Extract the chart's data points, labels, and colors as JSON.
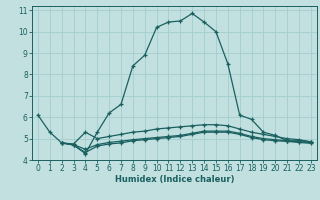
{
  "xlabel": "Humidex (Indice chaleur)",
  "bg_color": "#c2e0e0",
  "grid_color": "#a8d0d0",
  "line_color": "#1a6060",
  "xlim": [
    -0.5,
    23.5
  ],
  "ylim": [
    4,
    11.2
  ],
  "yticks": [
    4,
    5,
    6,
    7,
    8,
    9,
    10,
    11
  ],
  "xticks": [
    0,
    1,
    2,
    3,
    4,
    5,
    6,
    7,
    8,
    9,
    10,
    11,
    12,
    13,
    14,
    15,
    16,
    17,
    18,
    19,
    20,
    21,
    22,
    23
  ],
  "line1_x": [
    0,
    1,
    2,
    3,
    4,
    5,
    6,
    7,
    8,
    9,
    10,
    11,
    12,
    13,
    14,
    15,
    16,
    17,
    18,
    19,
    20,
    21,
    22,
    23
  ],
  "line1_y": [
    6.1,
    5.3,
    4.8,
    4.7,
    4.3,
    5.3,
    6.2,
    6.6,
    8.4,
    8.9,
    10.2,
    10.45,
    10.5,
    10.85,
    10.45,
    10.0,
    8.5,
    6.1,
    5.9,
    5.3,
    5.15,
    4.9,
    4.9,
    4.85
  ],
  "line2_x": [
    2,
    3,
    4,
    5,
    6,
    7,
    8,
    9,
    10,
    11,
    12,
    13,
    14,
    15,
    16,
    17,
    18,
    19,
    20,
    21,
    22,
    23
  ],
  "line2_y": [
    4.8,
    4.75,
    5.3,
    5.0,
    5.1,
    5.2,
    5.3,
    5.35,
    5.45,
    5.5,
    5.55,
    5.6,
    5.65,
    5.65,
    5.6,
    5.45,
    5.3,
    5.2,
    5.1,
    5.0,
    4.95,
    4.85
  ],
  "line3_x": [
    2,
    3,
    4,
    5,
    6,
    7,
    8,
    9,
    10,
    11,
    12,
    13,
    14,
    15,
    16,
    17,
    18,
    19,
    20,
    21,
    22,
    23
  ],
  "line3_y": [
    4.8,
    4.72,
    4.5,
    4.72,
    4.82,
    4.88,
    4.95,
    5.0,
    5.05,
    5.1,
    5.15,
    5.25,
    5.35,
    5.35,
    5.35,
    5.25,
    5.1,
    5.0,
    4.95,
    4.9,
    4.85,
    4.82
  ],
  "line4_x": [
    2,
    3,
    4,
    5,
    6,
    7,
    8,
    9,
    10,
    11,
    12,
    13,
    14,
    15,
    16,
    17,
    18,
    19,
    20,
    21,
    22,
    23
  ],
  "line4_y": [
    4.8,
    4.7,
    4.35,
    4.65,
    4.75,
    4.8,
    4.9,
    4.95,
    5.0,
    5.05,
    5.1,
    5.2,
    5.3,
    5.3,
    5.3,
    5.2,
    5.05,
    4.95,
    4.9,
    4.87,
    4.82,
    4.78
  ]
}
